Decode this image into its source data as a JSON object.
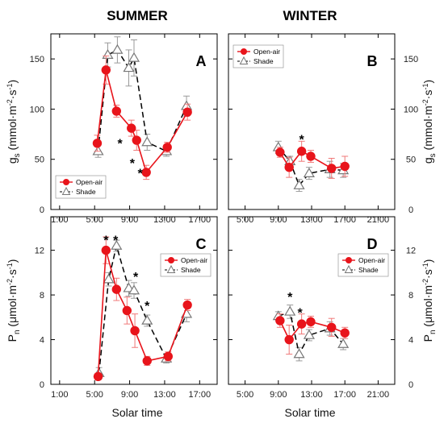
{
  "columns": {
    "left": "SUMMER",
    "right": "WINTER"
  },
  "y_labels": {
    "gs": {
      "main": "g",
      "sub": "s",
      "rest": " (mmol·m",
      "sup1": "-2",
      "mid": "·s",
      "sup2": "-1",
      "end": ")"
    },
    "pn": {
      "main": "P",
      "sub": "n",
      "rest": " (μmol·m",
      "sup1": "-2",
      "mid": "·s",
      "sup2": "-1",
      "end": ")"
    }
  },
  "x_title": "Solar time",
  "legend": {
    "open_air": "Open-air",
    "shade": "Shade"
  },
  "colors": {
    "open_air": "#e8141b",
    "shade": "#777777",
    "errorbar_open": "#f07878",
    "errorbar_shade": "#9a9a9a"
  },
  "chart_data": [
    {
      "panel": "A",
      "type": "line",
      "season": "SUMMER",
      "xlabel": "Solar time",
      "ylabel": "gs (mmol·m-2·s-1)",
      "xlim": [
        0,
        19
      ],
      "ylim": [
        0,
        175
      ],
      "xticks": [
        1,
        5,
        9,
        13,
        17
      ],
      "xtick_labels": [
        "1:00",
        "5:00",
        "9:00",
        "13:00",
        "17:00"
      ],
      "yticks": [
        0,
        50,
        100,
        150
      ],
      "ytick_labels": [
        "0",
        "50",
        "100",
        "150"
      ],
      "y_axis_side": "left",
      "legend_position": "bottom-left",
      "series": [
        {
          "name": "Open-air",
          "x": [
            5.3,
            6.3,
            7.5,
            9.2,
            9.8,
            10.9,
            13.3,
            15.6
          ],
          "y": [
            66,
            139,
            98,
            81,
            69,
            37,
            62,
            97
          ],
          "err": [
            8,
            14,
            6,
            8,
            10,
            7,
            5,
            8
          ]
        },
        {
          "name": "Shade",
          "x": [
            5.4,
            6.5,
            7.6,
            8.9,
            9.5,
            11.0,
            13.2,
            15.5
          ],
          "y": [
            58,
            154,
            159,
            141,
            151,
            67,
            58,
            103
          ],
          "err": [
            6,
            12,
            13,
            18,
            18,
            8,
            5,
            10
          ]
        }
      ],
      "annotations": [
        {
          "text": "*",
          "x": 7.9,
          "y": 68
        },
        {
          "text": "*",
          "x": 9.3,
          "y": 48
        },
        {
          "text": "*",
          "x": 10.2,
          "y": 38
        }
      ]
    },
    {
      "panel": "B",
      "type": "line",
      "season": "WINTER",
      "xlabel": "Solar time",
      "ylabel": "gs (mmol·m-2·s-1)",
      "xlim": [
        3,
        23
      ],
      "ylim": [
        0,
        175
      ],
      "xticks": [
        5,
        9,
        13,
        17,
        21
      ],
      "xtick_labels": [
        "5:00",
        "9:00",
        "13:00",
        "17:00",
        "21:00"
      ],
      "yticks": [
        0,
        50,
        100,
        150
      ],
      "ytick_labels": [
        "0",
        "50",
        "100",
        "150"
      ],
      "y_axis_side": "right",
      "legend_position": "top-left",
      "series": [
        {
          "name": "Open-air",
          "x": [
            9.2,
            10.3,
            11.8,
            12.9,
            15.4,
            17.0
          ],
          "y": [
            57,
            42,
            58,
            53,
            41,
            43
          ],
          "err": [
            5,
            10,
            10,
            6,
            10,
            10
          ]
        },
        {
          "name": "Shade",
          "x": [
            9.0,
            10.4,
            11.5,
            12.7,
            15.2,
            16.8
          ],
          "y": [
            62,
            48,
            24,
            36,
            40,
            39
          ],
          "err": [
            6,
            5,
            6,
            6,
            8,
            7
          ]
        }
      ],
      "annotations": [
        {
          "text": "*",
          "x": 11.8,
          "y": 72
        }
      ]
    },
    {
      "panel": "C",
      "type": "line",
      "season": "SUMMER",
      "xlabel": "Solar time",
      "ylabel": "Pn (μmol·m-2·s-1)",
      "xlim": [
        0,
        19
      ],
      "ylim": [
        0,
        15
      ],
      "xticks": [
        1,
        5,
        9,
        13,
        17
      ],
      "xtick_labels": [
        "1:00",
        "5:00",
        "9:00",
        "13:00",
        "17:00"
      ],
      "yticks": [
        0,
        4,
        8,
        12
      ],
      "ytick_labels": [
        "0",
        "4",
        "8",
        "12"
      ],
      "y_axis_side": "left",
      "legend_position": "top-right",
      "series": [
        {
          "name": "Open-air",
          "x": [
            5.4,
            6.3,
            7.5,
            8.7,
            9.6,
            11.0,
            13.4,
            15.6
          ],
          "y": [
            0.7,
            12.0,
            8.5,
            6.6,
            4.8,
            2.1,
            2.5,
            7.1
          ],
          "err": [
            0.3,
            1.2,
            1.0,
            1.2,
            1.5,
            0.4,
            0.4,
            0.5
          ]
        },
        {
          "name": "Shade",
          "x": [
            5.5,
            6.6,
            7.5,
            8.9,
            9.5,
            11.0,
            13.2,
            15.5
          ],
          "y": [
            1.0,
            9.4,
            12.4,
            8.6,
            8.4,
            5.7,
            2.3,
            6.3
          ],
          "err": [
            0.5,
            0.6,
            0.5,
            0.7,
            0.7,
            0.5,
            0.4,
            0.7
          ]
        }
      ],
      "annotations": [
        {
          "text": "*",
          "x": 6.3,
          "y": 13.1
        },
        {
          "text": "*",
          "x": 7.4,
          "y": 13.1
        },
        {
          "text": "*",
          "x": 9.7,
          "y": 9.8
        },
        {
          "text": "*",
          "x": 11.0,
          "y": 7.2
        }
      ]
    },
    {
      "panel": "D",
      "type": "line",
      "season": "WINTER",
      "xlabel": "Solar time",
      "ylabel": "Pn (μmol·m-2·s-1)",
      "xlim": [
        3,
        23
      ],
      "ylim": [
        0,
        15
      ],
      "xticks": [
        5,
        9,
        13,
        17,
        21
      ],
      "xtick_labels": [
        "5:00",
        "9:00",
        "13:00",
        "17:00",
        "21:00"
      ],
      "yticks": [
        0,
        4,
        8,
        12
      ],
      "ytick_labels": [
        "0",
        "4",
        "8",
        "12"
      ],
      "y_axis_side": "right",
      "legend_position": "top-right",
      "series": [
        {
          "name": "Open-air",
          "x": [
            9.2,
            10.3,
            11.8,
            12.9,
            15.4,
            17.0
          ],
          "y": [
            5.7,
            4.0,
            5.4,
            5.6,
            5.1,
            4.6
          ],
          "err": [
            0.6,
            1.3,
            0.9,
            0.5,
            0.8,
            0.5
          ]
        },
        {
          "name": "Shade",
          "x": [
            9.0,
            10.4,
            11.5,
            12.7,
            15.2,
            16.8
          ],
          "y": [
            6.1,
            6.5,
            2.7,
            4.4,
            5.0,
            3.6
          ],
          "err": [
            0.4,
            0.6,
            0.6,
            0.5,
            0.6,
            0.5
          ]
        }
      ],
      "annotations": [
        {
          "text": "*",
          "x": 10.4,
          "y": 8.0
        },
        {
          "text": "*",
          "x": 11.6,
          "y": 6.6
        }
      ]
    }
  ]
}
